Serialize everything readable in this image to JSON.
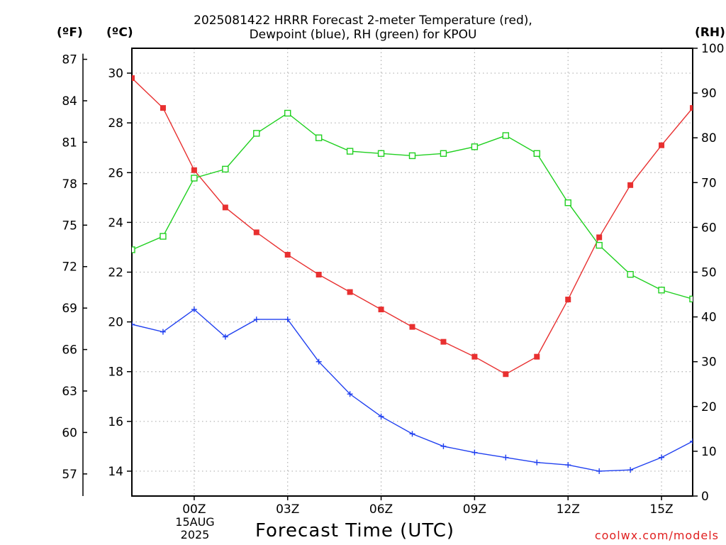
{
  "chart_data": {
    "type": "line",
    "title_line1": "2025081422 HRRR Forecast 2-meter Temperature (red),",
    "title_line2": "Dewpoint (blue), RH (green) for KPOU",
    "xlabel": "Forecast Time (UTC)",
    "units": {
      "fahrenheit": "(ºF)",
      "celsius": "(ºC)",
      "rh": "(RH)"
    },
    "date_label": [
      "15AUG",
      "2025"
    ],
    "credit": "coolwx.com/models",
    "x_hours": [
      -2,
      -1,
      0,
      1,
      2,
      3,
      4,
      5,
      6,
      7,
      8,
      9,
      10,
      11,
      12,
      13,
      14,
      15,
      16
    ],
    "x_range": [
      -2,
      16
    ],
    "x_ticks": [
      {
        "hour": 0,
        "label": "00Z"
      },
      {
        "hour": 3,
        "label": "03Z"
      },
      {
        "hour": 6,
        "label": "06Z"
      },
      {
        "hour": 9,
        "label": "09Z"
      },
      {
        "hour": 12,
        "label": "12Z"
      },
      {
        "hour": 15,
        "label": "15Z"
      }
    ],
    "celsius_axis": {
      "range": [
        13,
        31
      ],
      "ticks": [
        14,
        16,
        18,
        20,
        22,
        24,
        26,
        28,
        30
      ]
    },
    "fahrenheit_axis": {
      "ticks": [
        57,
        60,
        63,
        66,
        69,
        72,
        75,
        78,
        81,
        84,
        87
      ]
    },
    "rh_axis": {
      "range": [
        0,
        100
      ],
      "ticks": [
        0,
        10,
        20,
        30,
        40,
        50,
        60,
        70,
        80,
        90,
        100
      ]
    },
    "grid": true,
    "series": [
      {
        "name": "Temperature",
        "axis": "celsius",
        "color": "#e83030",
        "marker": "filled-square",
        "values": [
          29.8,
          28.6,
          26.1,
          24.6,
          23.6,
          22.7,
          21.9,
          21.2,
          20.5,
          19.8,
          19.2,
          18.6,
          17.9,
          18.6,
          20.9,
          23.4,
          25.5,
          27.1,
          28.6
        ]
      },
      {
        "name": "Dewpoint",
        "axis": "celsius",
        "color": "#2040f0",
        "marker": "plus",
        "values": [
          19.9,
          19.6,
          20.5,
          19.4,
          20.1,
          20.1,
          18.4,
          17.1,
          16.2,
          15.5,
          15.0,
          14.75,
          14.55,
          14.35,
          14.25,
          14.0,
          14.05,
          14.55,
          15.2
        ]
      },
      {
        "name": "RH",
        "axis": "rh",
        "color": "#20d020",
        "marker": "open-square",
        "values": [
          55,
          58,
          71,
          73,
          81,
          85.5,
          80,
          77,
          76.5,
          76,
          76.5,
          78,
          80.5,
          76.5,
          65.5,
          56,
          49.5,
          46,
          44
        ]
      }
    ]
  }
}
